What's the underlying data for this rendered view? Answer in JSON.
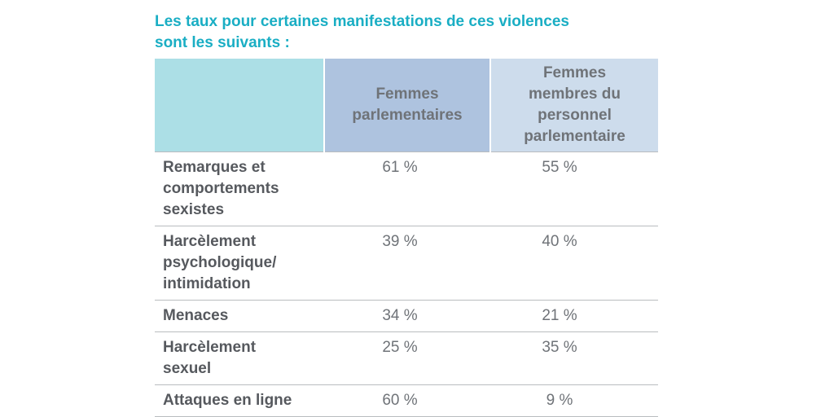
{
  "heading": {
    "line1": "Les taux pour certaines manifestations de ces violences",
    "line2": "sont les suivants :"
  },
  "table": {
    "headers": [
      "",
      "Femmes parlementaires",
      "Femmes membres du personnel parlementaire"
    ],
    "rows": [
      {
        "label": "Remarques et comportements sexistes",
        "parlementaires": "61 %",
        "personnel": "55 %"
      },
      {
        "label": "Harcèlement psychologique/ intimidation",
        "parlementaires": "39 %",
        "personnel": "40 %"
      },
      {
        "label": "Menaces",
        "parlementaires": "34 %",
        "personnel": "21 %"
      },
      {
        "label": "Harcèlement sexuel",
        "parlementaires": "25 %",
        "personnel": "35 %"
      },
      {
        "label": "Attaques en ligne",
        "parlementaires": "60 %",
        "personnel": "9 %"
      }
    ]
  },
  "colors": {
    "title": "#1aaec4",
    "header_col0": "#acdfe6",
    "header_col1": "#aec3df",
    "header_col2": "#cddcec",
    "text": "#6f7378",
    "rule": "#b9bcbf"
  }
}
